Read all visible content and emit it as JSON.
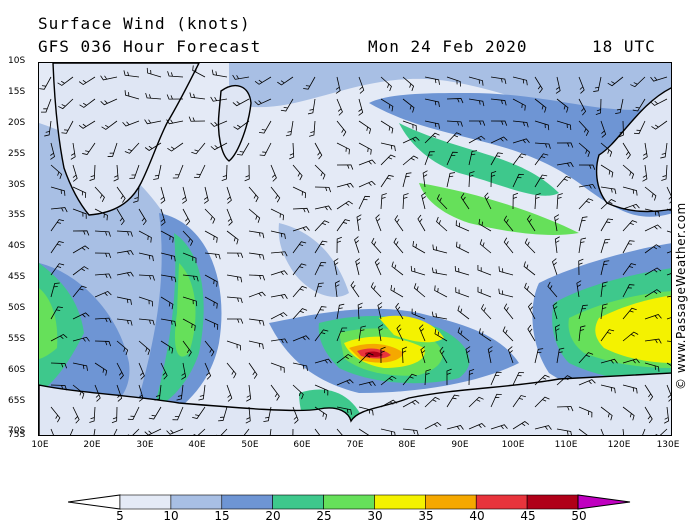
{
  "header": {
    "title": "Surface Wind (knots)",
    "model": "GFS 036 Hour Forecast",
    "date": "Mon 24 Feb 2020",
    "time": "18 UTC"
  },
  "credit": "© www.PassageWeather.com",
  "lat_labels": [
    "10S",
    "15S",
    "20S",
    "25S",
    "30S",
    "35S",
    "40S",
    "45S",
    "50S",
    "55S",
    "60S",
    "65S",
    "70S",
    "75S"
  ],
  "lon_labels": [
    "10E",
    "20E",
    "30E",
    "40E",
    "50E",
    "60E",
    "70E",
    "80E",
    "90E",
    "100E",
    "110E",
    "120E",
    "130E"
  ],
  "legend": {
    "ticks": [
      "5",
      "10",
      "15",
      "20",
      "25",
      "30",
      "35",
      "40",
      "45",
      "50"
    ],
    "colors": [
      "#e4eaf6",
      "#a8bfe4",
      "#6e95d4",
      "#3ec88c",
      "#66e05a",
      "#f4f200",
      "#f5a800",
      "#e8343c",
      "#b00018",
      "#c000c0"
    ]
  }
}
